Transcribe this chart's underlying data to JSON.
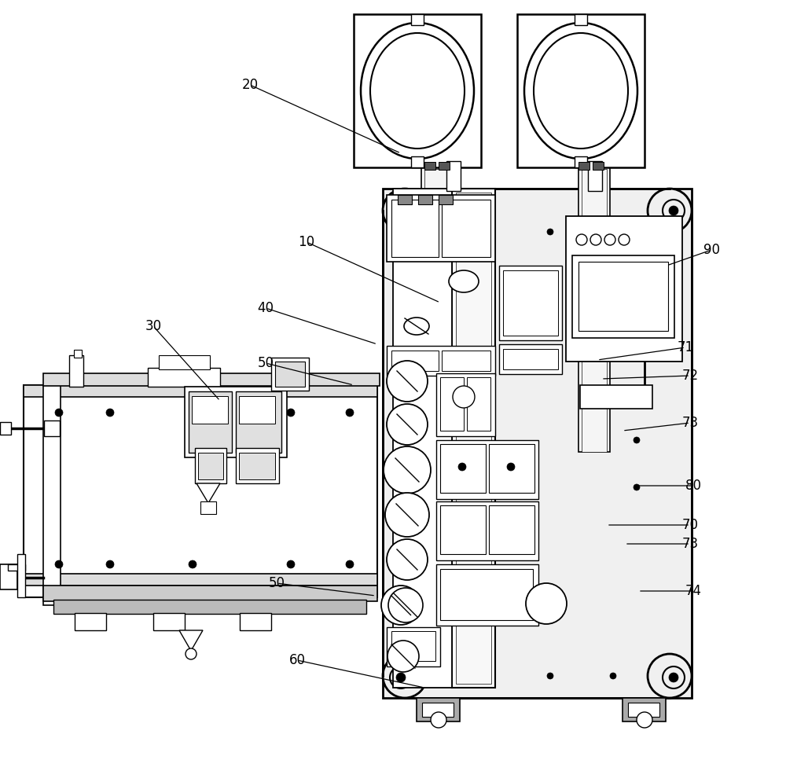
{
  "bg_color": "#ffffff",
  "fig_width": 10.0,
  "fig_height": 9.67,
  "dpi": 100,
  "annotations": [
    [
      "10",
      390,
      308,
      560,
      385
    ],
    [
      "20",
      318,
      108,
      510,
      195
    ],
    [
      "30",
      195,
      415,
      280,
      510
    ],
    [
      "40",
      338,
      392,
      480,
      438
    ],
    [
      "50",
      338,
      462,
      450,
      490
    ],
    [
      "50",
      352,
      742,
      478,
      758
    ],
    [
      "60",
      378,
      840,
      540,
      875
    ],
    [
      "70",
      878,
      668,
      772,
      668
    ],
    [
      "71",
      872,
      442,
      760,
      458
    ],
    [
      "72",
      878,
      478,
      765,
      482
    ],
    [
      "73",
      878,
      538,
      792,
      548
    ],
    [
      "73",
      878,
      692,
      795,
      692
    ],
    [
      "74",
      882,
      752,
      812,
      752
    ],
    [
      "80",
      882,
      618,
      808,
      618
    ],
    [
      "90",
      905,
      318,
      848,
      338
    ]
  ]
}
